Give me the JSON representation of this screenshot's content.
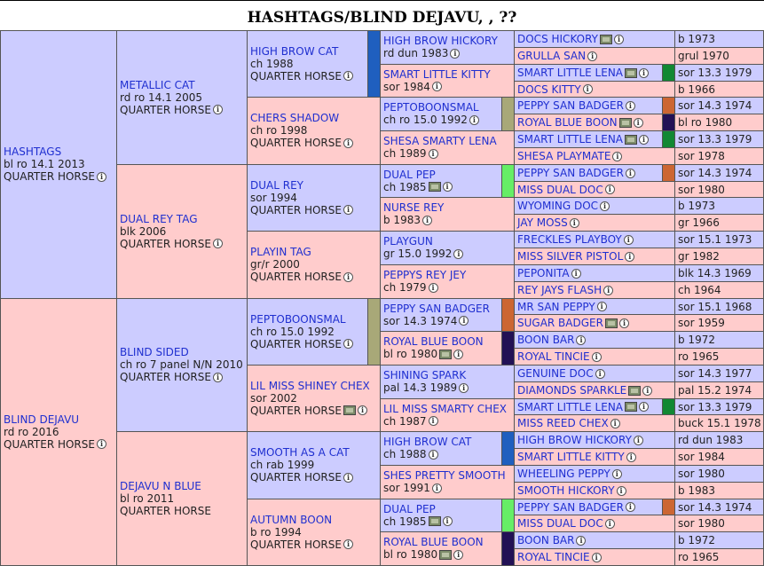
{
  "title": "HASHTAGS/BLIND DEJAVU, , ??",
  "colors": {
    "male": "#ccccff",
    "female": "#ffcccc",
    "link": "#1f2fd0"
  },
  "gen1": [
    {
      "name": "HASHTAGS",
      "line2": "bl ro 14.1 2013",
      "breed": "QUARTER HORSE"
    },
    {
      "name": "BLIND DEJAVU",
      "line2": "rd ro 2016",
      "breed": "QUARTER HORSE"
    }
  ],
  "gen2": [
    {
      "name": "METALLIC CAT",
      "line2": "rd ro 14.1 2005",
      "breed": "QUARTER HORSE"
    },
    {
      "name": "DUAL REY TAG",
      "line2": "blk 2006",
      "breed": "QUARTER HORSE"
    },
    {
      "name": "BLIND SIDED",
      "line2": "ch ro 7 panel N/N 2010",
      "breed": "QUARTER HORSE"
    },
    {
      "name": "DEJAVU N BLUE",
      "line2": "bl ro 2011",
      "breed": "QUARTER HORSE"
    }
  ],
  "gen3": [
    {
      "name": "HIGH BROW CAT",
      "line2": "ch 1988",
      "breed": "QUARTER HORSE",
      "bar": "#1f5fbf"
    },
    {
      "name": "CHERS SHADOW",
      "line2": "ch ro 1998",
      "breed": "QUARTER HORSE"
    },
    {
      "name": "DUAL REY",
      "line2": "sor 1994",
      "breed": "QUARTER HORSE"
    },
    {
      "name": "PLAYIN TAG",
      "line2": "gr/r 2000",
      "breed": "QUARTER HORSE"
    },
    {
      "name": "PEPTOBOONSMAL",
      "line2": "ch ro 15.0 1992",
      "breed": "QUARTER HORSE",
      "bar": "#a8a878"
    },
    {
      "name": "LIL MISS SHINEY CHEX",
      "line2": "sor 2002",
      "breed": "QUARTER HORSE"
    },
    {
      "name": "SMOOTH AS A CAT",
      "line2": "ch rab 1999",
      "breed": "QUARTER HORSE"
    },
    {
      "name": "AUTUMN BOON",
      "line2": "b ro 1994",
      "breed": "QUARTER HORSE"
    }
  ],
  "gen4": [
    {
      "name": "HIGH BROW HICKORY",
      "line2": "rd dun 1983"
    },
    {
      "name": "SMART LITTLE KITTY",
      "line2": "sor 1984"
    },
    {
      "name": "PEPTOBOONSMAL",
      "line2": "ch ro 15.0 1992",
      "bar": "#a8a878"
    },
    {
      "name": "SHESA SMARTY LENA",
      "line2": "ch 1989"
    },
    {
      "name": "DUAL PEP",
      "line2": "ch 1985",
      "bar": "#66ee66"
    },
    {
      "name": "NURSE REY",
      "line2": "b 1983"
    },
    {
      "name": "PLAYGUN",
      "line2": "gr 15.0 1992"
    },
    {
      "name": "PEPPYS REY JEY",
      "line2": "ch 1979"
    },
    {
      "name": "PEPPY SAN BADGER",
      "line2": "sor 14.3 1974",
      "bar": "#cc6633"
    },
    {
      "name": "ROYAL BLUE BOON",
      "line2": "bl ro 1980",
      "bar": "#221155"
    },
    {
      "name": "SHINING SPARK",
      "line2": "pal 14.3 1989"
    },
    {
      "name": "LIL MISS SMARTY CHEX",
      "line2": "ch 1987"
    },
    {
      "name": "HIGH BROW CAT",
      "line2": "ch 1988",
      "bar": "#1f5fbf"
    },
    {
      "name": "SHES PRETTY SMOOTH",
      "line2": "sor 1991"
    },
    {
      "name": "DUAL PEP",
      "line2": "ch 1985",
      "bar": "#66ee66"
    },
    {
      "name": "ROYAL BLUE BOON",
      "line2": "bl ro 1980",
      "bar": "#221155"
    }
  ],
  "gen5": [
    {
      "name": "DOCS HICKORY",
      "value": "b 1973"
    },
    {
      "name": "GRULLA SAN",
      "value": "grul 1970"
    },
    {
      "name": "SMART LITTLE LENA",
      "value": "sor 13.3 1979",
      "bar": "#118833"
    },
    {
      "name": "DOCS KITTY",
      "value": "b 1966"
    },
    {
      "name": "PEPPY SAN BADGER",
      "value": "sor 14.3 1974",
      "bar": "#cc6633"
    },
    {
      "name": "ROYAL BLUE BOON",
      "value": "bl ro 1980",
      "bar": "#221155"
    },
    {
      "name": "SMART LITTLE LENA",
      "value": "sor 13.3 1979",
      "bar": "#118833"
    },
    {
      "name": "SHESA PLAYMATE",
      "value": "sor 1978"
    },
    {
      "name": "PEPPY SAN BADGER",
      "value": "sor 14.3 1974",
      "bar": "#cc6633"
    },
    {
      "name": "MISS DUAL DOC",
      "value": "sor 1980"
    },
    {
      "name": "WYOMING DOC",
      "value": "b 1973"
    },
    {
      "name": "JAY MOSS",
      "value": "gr 1966"
    },
    {
      "name": "FRECKLES PLAYBOY",
      "value": "sor 15.1 1973"
    },
    {
      "name": "MISS SILVER PISTOL",
      "value": "gr 1982"
    },
    {
      "name": "PEPONITA",
      "value": "blk 14.3 1969"
    },
    {
      "name": "REY JAYS FLASH",
      "value": "ch 1964"
    },
    {
      "name": "MR SAN PEPPY",
      "value": "sor 15.1 1968"
    },
    {
      "name": "SUGAR BADGER",
      "value": "sor 1959"
    },
    {
      "name": "BOON BAR",
      "value": "b 1972"
    },
    {
      "name": "ROYAL TINCIE",
      "value": "ro 1965"
    },
    {
      "name": "GENUINE DOC",
      "value": "sor 14.3 1977"
    },
    {
      "name": "DIAMONDS SPARKLE",
      "value": "pal 15.2 1974"
    },
    {
      "name": "SMART LITTLE LENA",
      "value": "sor 13.3 1979",
      "bar": "#118833"
    },
    {
      "name": "MISS REED CHEX",
      "value": "buck 15.1 1978"
    },
    {
      "name": "HIGH BROW HICKORY",
      "value": "rd dun 1983"
    },
    {
      "name": "SMART LITTLE KITTY",
      "value": "sor 1984"
    },
    {
      "name": "WHEELING PEPPY",
      "value": "sor 1980"
    },
    {
      "name": "SMOOTH HICKORY",
      "value": "b 1983"
    },
    {
      "name": "PEPPY SAN BADGER",
      "value": "sor 14.3 1974",
      "bar": "#cc6633"
    },
    {
      "name": "MISS DUAL DOC",
      "value": "sor 1980"
    },
    {
      "name": "BOON BAR",
      "value": "b 1972"
    },
    {
      "name": "ROYAL TINCIE",
      "value": "ro 1965"
    }
  ]
}
